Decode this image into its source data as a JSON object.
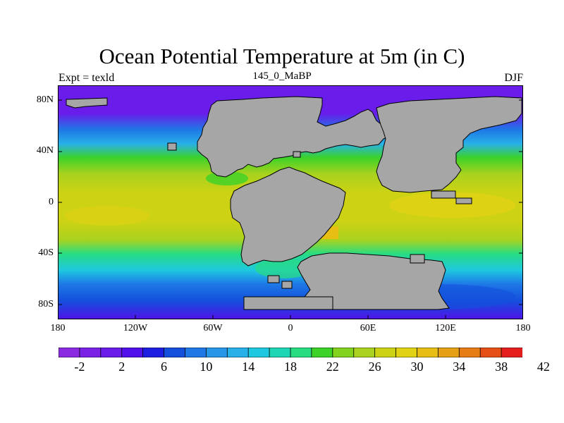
{
  "map": {
    "title": "Ocean Potential Temperature at 5m (in C)",
    "subtitle_left": "Expt = texld",
    "subtitle_center": "145_0_MaBP",
    "subtitle_right": "DJF",
    "land_color": "#a6a6a6",
    "lat_labels": [
      "80N",
      "40N",
      "0",
      "40S",
      "80S"
    ],
    "lon_labels": [
      "180",
      "120W",
      "60W",
      "0",
      "60E",
      "120E",
      "180"
    ]
  },
  "colorbar": {
    "colors": [
      "#8a2be2",
      "#7a22e6",
      "#6a1cea",
      "#5012e8",
      "#1e1ee0",
      "#1450dc",
      "#1e78e6",
      "#2896e8",
      "#28b0e8",
      "#1ec8e0",
      "#1ed6b4",
      "#28dc82",
      "#3cd228",
      "#82d21e",
      "#aad21e",
      "#cdd214",
      "#e1d214",
      "#e6be14",
      "#e6a014",
      "#e67d14",
      "#e65014",
      "#e61e1e"
    ],
    "labels": [
      "-2",
      "2",
      "6",
      "10",
      "14",
      "18",
      "22",
      "26",
      "30",
      "34",
      "38",
      "42"
    ]
  }
}
